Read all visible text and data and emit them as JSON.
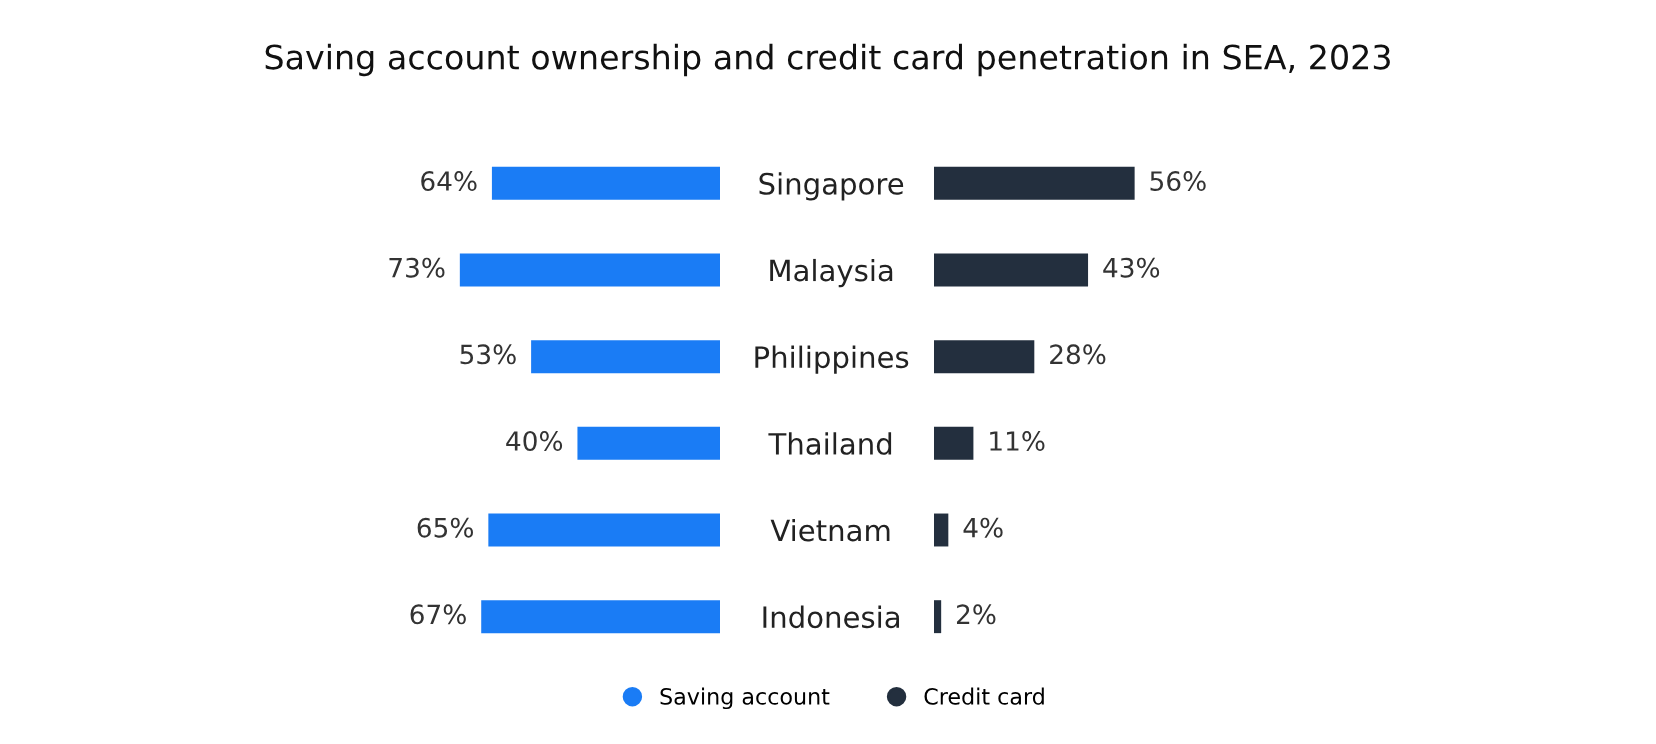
{
  "chart_data": [
    {
      "type": "bar",
      "orientation": "horizontal",
      "title": "Saving account ownership and credit card penetration in SEA, 2023",
      "categories": [
        "Singapore",
        "Malaysia",
        "Philippines",
        "Thailand",
        "Vietnam",
        "Indonesia"
      ],
      "tick_labels": "y",
      "legend": "bottom",
      "grid": false,
      "series": [
        {
          "name": "Saving account",
          "color": "#1a7cf5",
          "values": [
            64,
            73,
            53,
            40,
            65,
            67
          ],
          "value_labels": [
            "64%",
            "73%",
            "53%",
            "40%",
            "65%",
            "67%"
          ]
        }
      ]
    },
    {
      "type": "bar",
      "orientation": "horizontal",
      "tick_labels": false,
      "legend": "bottom",
      "grid": false,
      "series": [
        {
          "name": "Credit card",
          "color": "#232f3e",
          "values": [
            56,
            43,
            28,
            11,
            4,
            2
          ],
          "value_labels": [
            "56%",
            "43%",
            "28%",
            "11%",
            "4%",
            "2%"
          ]
        }
      ]
    }
  ]
}
